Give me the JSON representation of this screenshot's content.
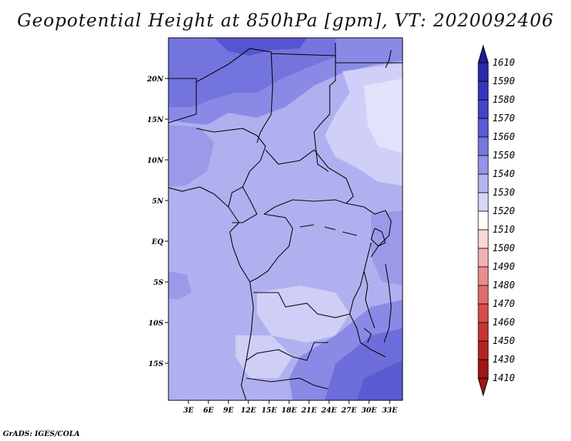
{
  "title": "Geopotential Height at 850hPa [gpm], VT: 2020092406",
  "credit": "GrADS: IGES/COLA",
  "lat_labels": [
    "20N",
    "15N",
    "10N",
    "5N",
    "EQ",
    "5S",
    "10S",
    "15S"
  ],
  "lon_labels": [
    "3E",
    "6E",
    "9E",
    "12E",
    "15E",
    "18E",
    "21E",
    "24E",
    "27E",
    "30E",
    "33E"
  ],
  "colorbar": {
    "levels": [
      "1610",
      "1590",
      "1580",
      "1570",
      "1560",
      "1550",
      "1540",
      "1530",
      "1520",
      "1510",
      "1500",
      "1490",
      "1480",
      "1470",
      "1460",
      "1450",
      "1430",
      "1410"
    ],
    "colors": [
      "#1b1b96",
      "#2a2ab0",
      "#3535c2",
      "#4343cc",
      "#5b5bd6",
      "#7777e0",
      "#9494e8",
      "#b4b4f0",
      "#d6d6f8",
      "#ffffff",
      "#fad6d6",
      "#f4b0b0",
      "#ec8c8c",
      "#e26c6c",
      "#d84c4c",
      "#c83434",
      "#b62222",
      "#a01616"
    ]
  },
  "map": {
    "extent": {
      "lon_min": 0,
      "lon_max": 35,
      "lat_min": -20,
      "lat_max": 24.5
    },
    "field_colors": {
      "dark": "#3a3acc",
      "mid": "#7070dd",
      "mid_light": "#9a9ae8",
      "base": "#b0b0f0",
      "light": "#cecef6",
      "lightest": "#e2e2fa"
    }
  }
}
